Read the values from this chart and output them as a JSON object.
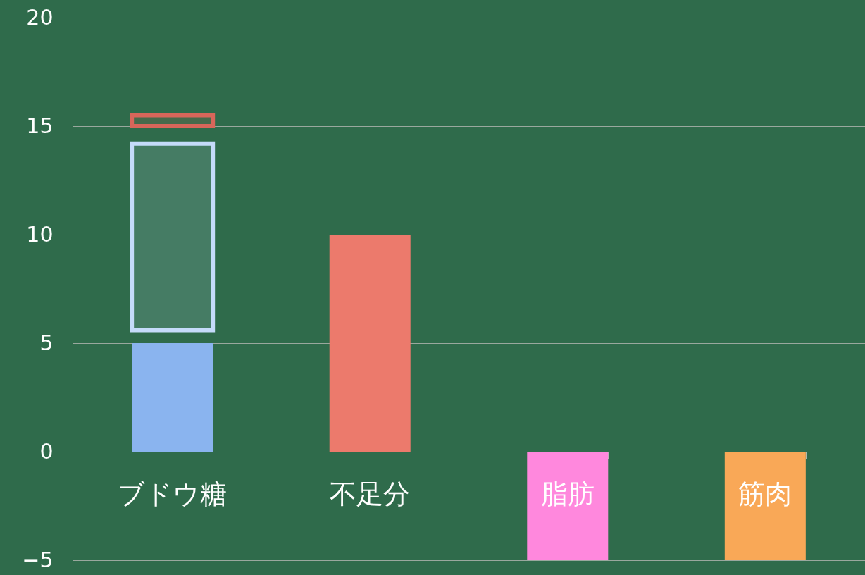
{
  "chart_data": {
    "type": "bar",
    "categories": [
      "ブドウ糖",
      "不足分",
      "脂肪",
      "筋肉"
    ],
    "series": [
      {
        "colors": [
          "#8ab4ef",
          "#ec7a6c",
          "#ff88dd",
          "#f9a857"
        ],
        "values": [
          5,
          10,
          -5,
          -5
        ]
      },
      {
        "color": "#c5dbfa",
        "base": [
          5.6,
          null,
          null,
          null
        ],
        "values": [
          8.6,
          null,
          null,
          null
        ]
      },
      {
        "color": "#d9665a",
        "base": [
          15,
          null,
          null,
          null
        ],
        "values": [
          0.5,
          null,
          null,
          null
        ]
      }
    ],
    "ylim": [
      -5,
      20
    ],
    "yticks": [
      -5,
      0,
      5,
      10,
      15,
      20
    ],
    "grid": "y"
  }
}
